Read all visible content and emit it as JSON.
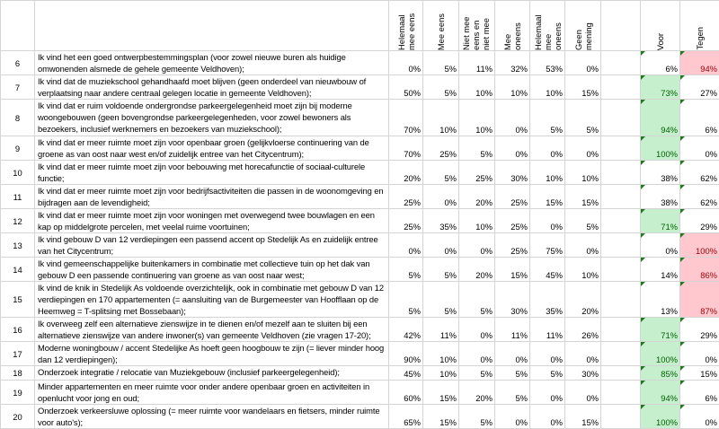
{
  "headers": [
    "Helemaal mee eens",
    "Mee eens",
    "Niet mee eens en niet mee oneens",
    "Mee oneens",
    "Helemaal mee oneens",
    "Geen mening",
    "",
    "Voor",
    "Tegen"
  ],
  "colors": {
    "positive_fill": "#c6efce",
    "positive_text": "#006100",
    "negative_fill": "#ffc7ce",
    "negative_text": "#9c0006",
    "comment_marker": "#1f7a1f"
  },
  "rows": [
    {
      "n": "6",
      "q": "Ik vind het een goed ontwerpbestemmingsplan (voor zowel nieuwe buren als huidige omwonenden alsmede de gehele gemeente Veldhoven);",
      "v": [
        "0%",
        "5%",
        "11%",
        "32%",
        "53%",
        "0%"
      ],
      "voor": "6%",
      "tegen": "94%",
      "hl": "tegen"
    },
    {
      "n": "7",
      "q": "Ik vind dat de muziekschool gehandhaafd moet blijven (geen onderdeel van nieuwbouw of verplaatsing naar andere centraal gelegen locatie in gemeente Veldhoven);",
      "v": [
        "50%",
        "5%",
        "10%",
        "10%",
        "10%",
        "15%"
      ],
      "voor": "73%",
      "tegen": "27%",
      "hl": "voor"
    },
    {
      "n": "8",
      "q": "Ik vind dat er ruim voldoende ondergrondse parkeergelegenheid moet zijn bij moderne woongebouwen (geen bovengrondse parkeergelegenheden, voor zowel bewoners als bezoekers, inclusief werknemers en bezoekers van muziekschool);",
      "v": [
        "70%",
        "10%",
        "10%",
        "0%",
        "5%",
        "5%"
      ],
      "voor": "94%",
      "tegen": "6%",
      "hl": "voor"
    },
    {
      "n": "9",
      "q": "Ik vind dat er meer ruimte moet zijn voor openbaar groen (gelijkvloerse continuering van de groene as van oost naar west en/of zuidelijk entree van het Citycentrum);",
      "v": [
        "70%",
        "25%",
        "5%",
        "0%",
        "0%",
        "0%"
      ],
      "voor": "100%",
      "tegen": "0%",
      "hl": "voor"
    },
    {
      "n": "10",
      "q": "Ik vind dat er meer ruimte moet zijn voor bebouwing met horecafunctie of sociaal-culturele functie;",
      "v": [
        "20%",
        "5%",
        "25%",
        "30%",
        "10%",
        "10%"
      ],
      "voor": "38%",
      "tegen": "62%",
      "hl": ""
    },
    {
      "n": "11",
      "q": "Ik vind dat er meer ruimte moet zijn voor bedrijfsactiviteiten die passen in de woonomgeving en bijdragen aan de levendigheid;",
      "v": [
        "25%",
        "0%",
        "20%",
        "25%",
        "15%",
        "15%"
      ],
      "voor": "38%",
      "tegen": "62%",
      "hl": ""
    },
    {
      "n": "12",
      "q": "Ik vind dat er meer ruimte moet zijn voor woningen met overwegend twee bouwlagen en een kap op middelgrote percelen, met veelal ruime voortuinen;",
      "v": [
        "25%",
        "35%",
        "10%",
        "25%",
        "0%",
        "5%"
      ],
      "voor": "71%",
      "tegen": "29%",
      "hl": "voor"
    },
    {
      "n": "13",
      "q": "Ik vind gebouw D van 12 verdiepingen een passend accent op Stedelijk As en zuidelijk entree van het Citycentrum;",
      "v": [
        "0%",
        "0%",
        "0%",
        "25%",
        "75%",
        "0%"
      ],
      "voor": "0%",
      "tegen": "100%",
      "hl": "tegen"
    },
    {
      "n": "14",
      "q": "Ik vind gemeenschappelijke buitenkamers in combinatie met collectieve tuin op het dak van gebouw D een passende continuering van groene as van oost naar west;",
      "v": [
        "5%",
        "5%",
        "20%",
        "15%",
        "45%",
        "10%"
      ],
      "voor": "14%",
      "tegen": "86%",
      "hl": "tegen"
    },
    {
      "n": "15",
      "q": "Ik vind de knik in Stedelijk As voldoende overzichtelijk, ook in combinatie met gebouw D van 12 verdiepingen en 170 appartementen (= aansluiting van de Burgemeester van Hoofflaan op de Heemweg = T-splitsing met Bossebaan);",
      "v": [
        "5%",
        "5%",
        "5%",
        "30%",
        "35%",
        "20%"
      ],
      "voor": "13%",
      "tegen": "87%",
      "hl": "tegen"
    },
    {
      "n": "16",
      "q": "Ik overweeg zelf een alternatieve zienswijze in te dienen en/of mezelf aan te sluiten bij een alternatieve zienswijze van andere inwoner(s) van gemeente Veldhoven (zie vragen 17-20);",
      "v": [
        "42%",
        "11%",
        "0%",
        "11%",
        "11%",
        "26%"
      ],
      "voor": "71%",
      "tegen": "29%",
      "hl": "voor"
    },
    {
      "n": "17",
      "q": "Moderne woningbouw / accent Stedelijke As hoeft geen hoogbouw te zijn (= liever minder hoog dan 12 verdiepingen);",
      "v": [
        "90%",
        "10%",
        "0%",
        "0%",
        "0%",
        "0%"
      ],
      "voor": "100%",
      "tegen": "0%",
      "hl": "voor"
    },
    {
      "n": "18",
      "q": "Onderzoek integratie / relocatie van Muziekgebouw (inclusief parkeergelegenheid);",
      "v": [
        "45%",
        "10%",
        "5%",
        "5%",
        "5%",
        "30%"
      ],
      "voor": "85%",
      "tegen": "15%",
      "hl": "voor"
    },
    {
      "n": "19",
      "q": "Minder appartementen en meer ruimte voor onder andere openbaar groen en activiteiten in openlucht voor jong en oud;",
      "v": [
        "60%",
        "15%",
        "20%",
        "5%",
        "0%",
        "0%"
      ],
      "voor": "94%",
      "tegen": "6%",
      "hl": "voor"
    },
    {
      "n": "20",
      "q": "Onderzoek verkeersluwe oplossing (= meer ruimte voor wandelaars en fietsers, minder ruimte voor auto's);",
      "v": [
        "65%",
        "15%",
        "5%",
        "0%",
        "0%",
        "15%"
      ],
      "voor": "100%",
      "tegen": "0%",
      "hl": "voor"
    }
  ]
}
